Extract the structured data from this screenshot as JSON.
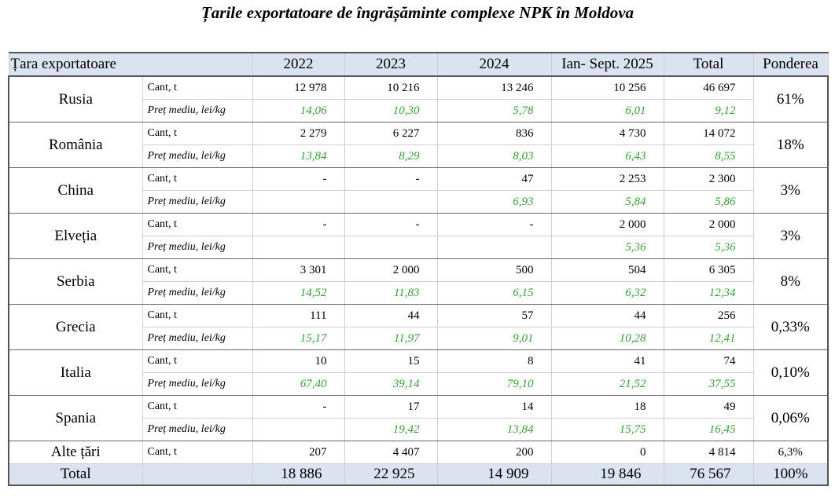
{
  "title": "Țarile  exportatoare de îngrășăminte complexe NPK în Moldova",
  "table": {
    "header": [
      "Țara exportatoare",
      "2022",
      "2023",
      "2024",
      "Ian- Sept. 2025",
      "Total",
      "Ponderea"
    ],
    "rows": [
      {
        "country": "Rusia",
        "qty_label": "Cant, t",
        "qty": [
          "12 978",
          "10 216",
          "13 246",
          "10 256",
          "46 697"
        ],
        "price_label": "Preț mediu, lei/kg",
        "price": [
          "14,06",
          "10,30",
          "5,78",
          "6,01",
          "9,12"
        ],
        "share": "61%"
      },
      {
        "country": "România",
        "qty_label": "Cant, t",
        "qty": [
          "2 279",
          "6 227",
          "836",
          "4 730",
          "14 072"
        ],
        "price_label": "Preț mediu, lei/kg",
        "price": [
          "13,84",
          "8,29",
          "8,03",
          "6,43",
          "8,55"
        ],
        "share": "18%"
      },
      {
        "country": "China",
        "qty_label": "Cant, t",
        "qty": [
          "-",
          "-",
          "47",
          "2 253",
          "2 300"
        ],
        "price_label": "Preț mediu, lei/kg",
        "price": [
          null,
          null,
          "6,93",
          "5,84",
          "5,86"
        ],
        "share": "3%"
      },
      {
        "country": "Elveția",
        "qty_label": "Cant, t",
        "qty": [
          "-",
          "-",
          "-",
          "2 000",
          "2 000"
        ],
        "price_label": "Preț mediu, lei/kg",
        "price": [
          null,
          null,
          null,
          "5,36",
          "5,36"
        ],
        "share": "3%"
      },
      {
        "country": "Serbia",
        "qty_label": "Cant, t",
        "qty": [
          "3 301",
          "2 000",
          "500",
          "504",
          "6 305"
        ],
        "price_label": "Preț mediu, lei/kg",
        "price": [
          "14,52",
          "11,83",
          "6,15",
          "6,32",
          "12,34"
        ],
        "share": "8%"
      },
      {
        "country": "Grecia",
        "qty_label": "Cant, t",
        "qty": [
          "111",
          "44",
          "57",
          "44",
          "256"
        ],
        "price_label": "Preț mediu, lei/kg",
        "price": [
          "15,17",
          "11,97",
          "9,01",
          "10,28",
          "12,41"
        ],
        "share": "0,33%"
      },
      {
        "country": "Italia",
        "qty_label": "Cant, t",
        "qty": [
          "10",
          "15",
          "8",
          "41",
          "74"
        ],
        "price_label": "Preț mediu, lei/kg",
        "price": [
          "67,40",
          "39,14",
          "79,10",
          "21,52",
          "37,55"
        ],
        "share": "0,10%"
      },
      {
        "country": "Spania",
        "qty_label": "Cant, t",
        "qty": [
          "-",
          "17",
          "14",
          "18",
          "49"
        ],
        "price_label": "Preț mediu, lei/kg",
        "price": [
          null,
          "19,42",
          "13,84",
          "15,75",
          "16,45"
        ],
        "share": "0,06%"
      }
    ],
    "other": {
      "country": "Alte țări",
      "qty_label": "Cant, t",
      "qty": [
        "207",
        "4 407",
        "200",
        "0",
        "4 814"
      ],
      "share": "6,3%"
    },
    "total": {
      "label": "Total",
      "values": [
        "18 886",
        "22 925",
        "14 909",
        "19 846",
        "76 567"
      ],
      "share": "100%"
    }
  }
}
